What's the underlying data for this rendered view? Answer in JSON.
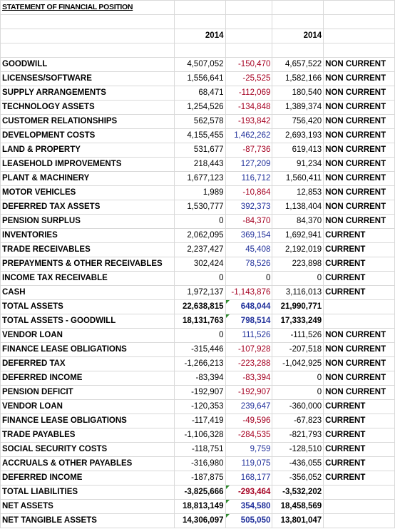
{
  "title": "STATEMENT OF FINANCIAL POSITION",
  "headers": {
    "col_b": "2014",
    "col_d": "2014"
  },
  "rows": [
    {
      "label": "GOODWILL",
      "a": "4,507,052",
      "b": "-150,470",
      "c": "4,657,522",
      "type": "NON CURRENT",
      "b_color": "red"
    },
    {
      "label": "LICENSES/SOFTWARE",
      "a": "1,556,641",
      "b": "-25,525",
      "c": "1,582,166",
      "type": "NON CURRENT",
      "b_color": "red"
    },
    {
      "label": "SUPPLY ARRANGEMENTS",
      "a": "68,471",
      "b": "-112,069",
      "c": "180,540",
      "type": "NON CURRENT",
      "b_color": "red"
    },
    {
      "label": "TECHNOLOGY ASSETS",
      "a": "1,254,526",
      "b": "-134,848",
      "c": "1,389,374",
      "type": "NON CURRENT",
      "b_color": "red"
    },
    {
      "label": "CUSTOMER RELATIONSHIPS",
      "a": "562,578",
      "b": "-193,842",
      "c": "756,420",
      "type": "NON CURRENT",
      "b_color": "red"
    },
    {
      "label": "DEVELOPMENT COSTS",
      "a": "4,155,455",
      "b": "1,462,262",
      "c": "2,693,193",
      "type": "NON CURRENT",
      "b_color": "blue"
    },
    {
      "label": "LAND & PROPERTY",
      "a": "531,677",
      "b": "-87,736",
      "c": "619,413",
      "type": "NON CURRENT",
      "b_color": "red"
    },
    {
      "label": "LEASEHOLD IMPROVEMENTS",
      "a": "218,443",
      "b": "127,209",
      "c": "91,234",
      "type": "NON CURRENT",
      "b_color": "blue"
    },
    {
      "label": "PLANT & MACHINERY",
      "a": "1,677,123",
      "b": "116,712",
      "c": "1,560,411",
      "type": "NON CURRENT",
      "b_color": "blue"
    },
    {
      "label": "MOTOR VEHICLES",
      "a": "1,989",
      "b": "-10,864",
      "c": "12,853",
      "type": "NON CURRENT",
      "b_color": "red"
    },
    {
      "label": "DEFERRED TAX ASSETS",
      "a": "1,530,777",
      "b": "392,373",
      "c": "1,138,404",
      "type": "NON CURRENT",
      "b_color": "blue"
    },
    {
      "label": "PENSION SURPLUS",
      "a": "0",
      "b": "-84,370",
      "c": "84,370",
      "type": "NON CURRENT",
      "b_color": "red"
    },
    {
      "label": "INVENTORIES",
      "a": "2,062,095",
      "b": "369,154",
      "c": "1,692,941",
      "type": "CURRENT",
      "b_color": "blue"
    },
    {
      "label": "TRADE RECEIVABLES",
      "a": "2,237,427",
      "b": "45,408",
      "c": "2,192,019",
      "type": "CURRENT",
      "b_color": "blue"
    },
    {
      "label": "PREPAYMENTS & OTHER RECEIVABLES",
      "a": "302,424",
      "b": "78,526",
      "c": "223,898",
      "type": "CURRENT",
      "b_color": "blue"
    },
    {
      "label": "INCOME TAX RECEIVABLE",
      "a": "0",
      "b": "0",
      "c": "0",
      "type": "CURRENT",
      "b_color": "black"
    },
    {
      "label": "CASH",
      "a": "1,972,137",
      "b": "-1,143,876",
      "c": "3,116,013",
      "type": "CURRENT",
      "b_color": "red"
    },
    {
      "label": "TOTAL ASSETS",
      "a": "22,638,815",
      "b": "648,044",
      "c": "21,990,771",
      "type": "",
      "b_color": "blue",
      "bold": true,
      "flag": true
    },
    {
      "label": "TOTAL ASSETS - GOODWILL",
      "a": "18,131,763",
      "b": "798,514",
      "c": "17,333,249",
      "type": "",
      "b_color": "blue",
      "bold": true,
      "flag": true
    },
    {
      "label": "VENDOR LOAN",
      "a": "0",
      "b": "111,526",
      "c": "-111,526",
      "type": "NON CURRENT",
      "b_color": "blue"
    },
    {
      "label": "FINANCE LEASE OBLIGATIONS",
      "a": "-315,446",
      "b": "-107,928",
      "c": "-207,518",
      "type": "NON CURRENT",
      "b_color": "red"
    },
    {
      "label": "DEFERRED TAX",
      "a": "-1,266,213",
      "b": "-223,288",
      "c": "-1,042,925",
      "type": "NON CURRENT",
      "b_color": "red"
    },
    {
      "label": "DEFERRED INCOME",
      "a": "-83,394",
      "b": "-83,394",
      "c": "0",
      "type": "NON CURRENT",
      "b_color": "red"
    },
    {
      "label": "PENSION DEFICIT",
      "a": "-192,907",
      "b": "-192,907",
      "c": "0",
      "type": "NON CURRENT",
      "b_color": "red"
    },
    {
      "label": "VENDOR LOAN",
      "a": "-120,353",
      "b": "239,647",
      "c": "-360,000",
      "type": "CURRENT",
      "b_color": "blue"
    },
    {
      "label": "FINANCE LEASE OBLIGATIONS",
      "a": "-117,419",
      "b": "-49,596",
      "c": "-67,823",
      "type": "CURRENT",
      "b_color": "red"
    },
    {
      "label": "TRADE PAYABLES",
      "a": "-1,106,328",
      "b": "-284,535",
      "c": "-821,793",
      "type": "CURRENT",
      "b_color": "red"
    },
    {
      "label": "SOCIAL SECURITY COSTS",
      "a": "-118,751",
      "b": "9,759",
      "c": "-128,510",
      "type": "CURRENT",
      "b_color": "blue"
    },
    {
      "label": "ACCRUALS & OTHER PAYABLES",
      "a": "-316,980",
      "b": "119,075",
      "c": "-436,055",
      "type": "CURRENT",
      "b_color": "blue"
    },
    {
      "label": "DEFERRED INCOME",
      "a": "-187,875",
      "b": "168,177",
      "c": "-356,052",
      "type": "CURRENT",
      "b_color": "blue"
    },
    {
      "label": "TOTAL LIABILITIES",
      "a": "-3,825,666",
      "b": "-293,464",
      "c": "-3,532,202",
      "type": "",
      "b_color": "red",
      "bold": true,
      "flag": true
    },
    {
      "label": "NET ASSETS",
      "a": "18,813,149",
      "b": "354,580",
      "c": "18,458,569",
      "type": "",
      "b_color": "blue",
      "bold": true,
      "flag": true
    },
    {
      "label": "NET TANGIBLE ASSETS",
      "a": "14,306,097",
      "b": "505,050",
      "c": "13,801,047",
      "type": "",
      "b_color": "blue",
      "bold": true,
      "flag": true
    }
  ],
  "colors": {
    "red": "#a50021",
    "blue": "#1f2f9a",
    "flag": "#2e8b2e",
    "grid": "#d9d9d9"
  }
}
